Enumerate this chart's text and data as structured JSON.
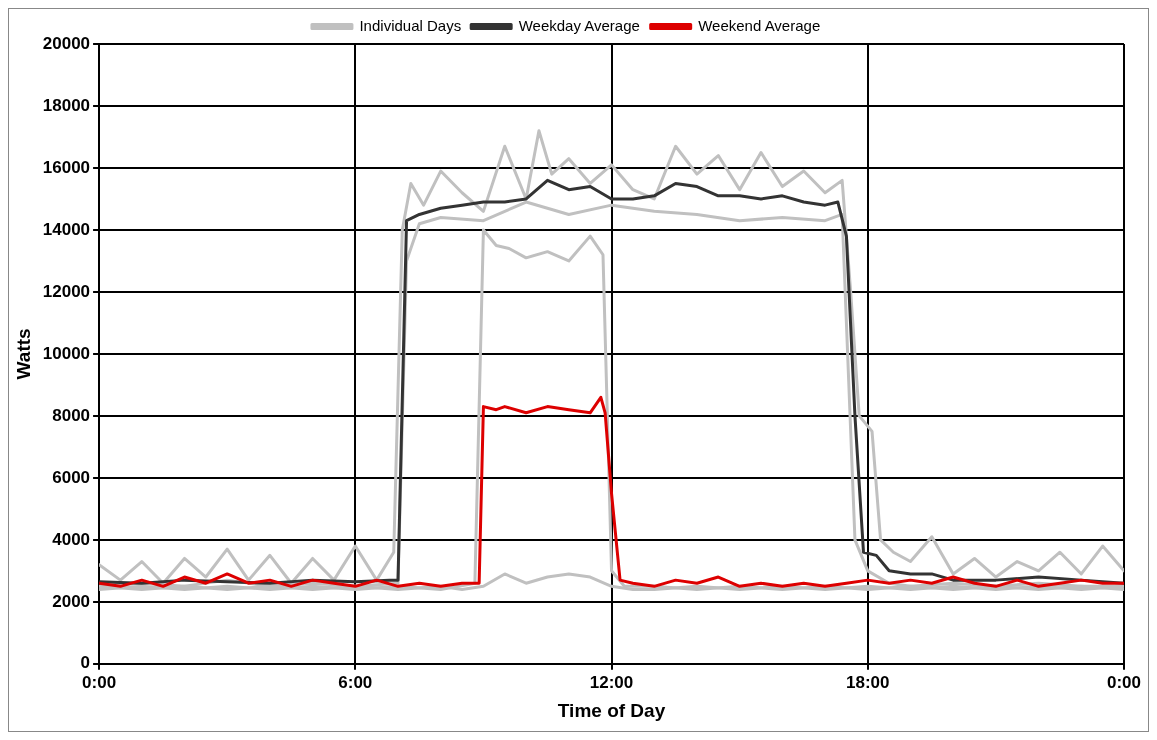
{
  "chart_data": {
    "type": "line",
    "xlabel": "Time of Day",
    "ylabel": "Watts",
    "xlim": [
      0,
      24
    ],
    "xticks": [
      {
        "value": 0,
        "label": "0:00"
      },
      {
        "value": 6,
        "label": "6:00"
      },
      {
        "value": 12,
        "label": "12:00"
      },
      {
        "value": 18,
        "label": "18:00"
      },
      {
        "value": 24,
        "label": "0:00"
      }
    ],
    "ylim": [
      0,
      20000
    ],
    "yticks": [
      0,
      2000,
      4000,
      6000,
      8000,
      10000,
      12000,
      14000,
      16000,
      18000,
      20000
    ],
    "grid": true,
    "legend": "top",
    "marker": "none",
    "line_style": "solid",
    "series": [
      {
        "name": "Individual Days",
        "color": "#c0c0c0",
        "x": [
          0,
          0.5,
          1,
          1.5,
          2,
          2.5,
          3,
          3.5,
          4,
          4.5,
          5,
          5.5,
          6,
          6.5,
          6.9,
          7.1,
          7.3,
          7.6,
          8,
          8.5,
          9,
          9.5,
          10,
          10.3,
          10.6,
          11,
          11.5,
          12,
          12.5,
          13,
          13.5,
          14,
          14.5,
          15,
          15.5,
          16,
          16.5,
          17,
          17.4,
          17.6,
          17.8,
          18.1,
          18.3,
          18.6,
          19,
          19.5,
          20,
          20.5,
          21,
          21.5,
          22,
          22.5,
          23,
          23.5,
          24
        ],
        "values": [
          3200,
          2700,
          3300,
          2600,
          3400,
          2800,
          3700,
          2700,
          3500,
          2600,
          3400,
          2700,
          3800,
          2700,
          3600,
          14000,
          15500,
          14800,
          15900,
          15200,
          14600,
          16700,
          15000,
          17200,
          15800,
          16300,
          15500,
          16100,
          15300,
          15000,
          16700,
          15800,
          16400,
          15300,
          16500,
          15400,
          15900,
          15200,
          15600,
          12000,
          8000,
          7500,
          4000,
          3600,
          3300,
          4100,
          2900,
          3400,
          2800,
          3300,
          3000,
          3600,
          2900,
          3800,
          3000
        ]
      },
      {
        "color": "#c0c0c0",
        "x": [
          0,
          1,
          2,
          3,
          4,
          5,
          6,
          7,
          7.2,
          7.5,
          8,
          9,
          10,
          11,
          12,
          13,
          14,
          15,
          16,
          17,
          17.4,
          17.7,
          18,
          18.5,
          19,
          20,
          21,
          22,
          23,
          24
        ],
        "values": [
          2500,
          2600,
          2500,
          2700,
          2500,
          2600,
          2500,
          2600,
          13000,
          14200,
          14400,
          14300,
          14900,
          14500,
          14800,
          14600,
          14500,
          14300,
          14400,
          14300,
          14500,
          4000,
          3000,
          2600,
          2500,
          2600,
          2500,
          2600,
          2500,
          2500
        ]
      },
      {
        "color": "#c0c0c0",
        "x": [
          0,
          1,
          2,
          3,
          4,
          5,
          6,
          7,
          8,
          8.8,
          9,
          9.3,
          9.6,
          10,
          10.5,
          11,
          11.5,
          11.8,
          12,
          12.3,
          13,
          14,
          15,
          16,
          17,
          18,
          19,
          20,
          21,
          22,
          23,
          24
        ],
        "values": [
          2400,
          2500,
          2400,
          2500,
          2400,
          2500,
          2400,
          2500,
          2400,
          2600,
          14000,
          13500,
          13400,
          13100,
          13300,
          13000,
          13800,
          13200,
          3000,
          2500,
          2500,
          2400,
          2500,
          2400,
          2500,
          2400,
          2500,
          2400,
          2500,
          2400,
          2500,
          2400
        ]
      },
      {
        "color": "#c0c0c0",
        "x": [
          0,
          1,
          2,
          3,
          4,
          5,
          6,
          7,
          8,
          8.5,
          9,
          9.5,
          10,
          10.5,
          11,
          11.5,
          12,
          12.5,
          13,
          14,
          15,
          16,
          17,
          18,
          19,
          20,
          21,
          22,
          23,
          24
        ],
        "values": [
          2500,
          2400,
          2500,
          2400,
          2500,
          2400,
          2500,
          2400,
          2500,
          2400,
          2500,
          2900,
          2600,
          2800,
          2900,
          2800,
          2500,
          2400,
          2400,
          2500,
          2400,
          2500,
          2400,
          2500,
          2400,
          2500,
          2400,
          2500,
          2400,
          2500
        ]
      },
      {
        "name": "Weekday Average",
        "color": "#333333",
        "x": [
          0,
          1,
          2,
          3,
          4,
          5,
          6,
          6.8,
          7.0,
          7.2,
          7.5,
          8,
          8.5,
          9,
          9.5,
          10,
          10.5,
          11,
          11.5,
          12,
          12.5,
          13,
          13.5,
          14,
          14.5,
          15,
          15.5,
          16,
          16.5,
          17,
          17.3,
          17.5,
          17.7,
          17.9,
          18.2,
          18.5,
          19,
          19.5,
          20,
          21,
          22,
          23,
          24
        ],
        "values": [
          2650,
          2600,
          2700,
          2650,
          2600,
          2700,
          2650,
          2700,
          2700,
          14300,
          14500,
          14700,
          14800,
          14900,
          14900,
          15000,
          15600,
          15300,
          15400,
          15000,
          15000,
          15100,
          15500,
          15400,
          15100,
          15100,
          15000,
          15100,
          14900,
          14800,
          14900,
          13800,
          8000,
          3600,
          3500,
          3000,
          2900,
          2900,
          2700,
          2700,
          2800,
          2700,
          2600
        ]
      },
      {
        "name": "Weekend Average",
        "color": "#dd0000",
        "x": [
          0,
          0.5,
          1,
          1.5,
          2,
          2.5,
          3,
          3.5,
          4,
          4.5,
          5,
          5.5,
          6,
          6.5,
          7,
          7.5,
          8,
          8.5,
          8.9,
          9.0,
          9.3,
          9.5,
          10,
          10.5,
          11,
          11.5,
          11.75,
          11.85,
          12.0,
          12.2,
          12.5,
          13,
          13.5,
          14,
          14.5,
          15,
          15.5,
          16,
          16.5,
          17,
          17.5,
          18,
          18.5,
          19,
          19.5,
          20,
          20.5,
          21,
          21.5,
          22,
          22.5,
          23,
          23.5,
          24
        ],
        "values": [
          2600,
          2500,
          2700,
          2500,
          2800,
          2600,
          2900,
          2600,
          2700,
          2500,
          2700,
          2600,
          2500,
          2700,
          2500,
          2600,
          2500,
          2600,
          2600,
          8300,
          8200,
          8300,
          8100,
          8300,
          8200,
          8100,
          8600,
          8100,
          5500,
          2700,
          2600,
          2500,
          2700,
          2600,
          2800,
          2500,
          2600,
          2500,
          2600,
          2500,
          2600,
          2700,
          2600,
          2700,
          2600,
          2800,
          2600,
          2500,
          2700,
          2500,
          2600,
          2700,
          2600,
          2600
        ]
      }
    ]
  }
}
